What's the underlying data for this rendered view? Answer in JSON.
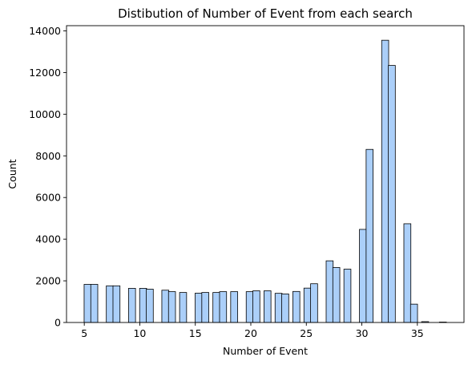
{
  "chart_data": {
    "type": "bar",
    "title": "Distibution of Number of Event from each search",
    "xlabel": "Number of Event",
    "ylabel": "Count",
    "xlim": [
      3.4,
      39.2
    ],
    "ylim": [
      0,
      14250
    ],
    "xticks": [
      5,
      10,
      15,
      20,
      25,
      30,
      35
    ],
    "yticks": [
      0,
      2000,
      4000,
      6000,
      8000,
      10000,
      12000,
      14000
    ],
    "bar_color": "#abcff9",
    "bar_width": 0.63,
    "grid": false,
    "legend": "none",
    "x": [
      5.3,
      5.9,
      7.3,
      7.9,
      9.3,
      10.3,
      10.9,
      12.3,
      12.9,
      13.9,
      15.3,
      15.9,
      16.9,
      17.5,
      18.5,
      19.9,
      20.5,
      21.5,
      22.5,
      23.1,
      24.1,
      25.1,
      25.7,
      27.1,
      27.7,
      28.7,
      30.1,
      30.7,
      32.1,
      32.7,
      34.1,
      34.7,
      35.7,
      36.3,
      37.3
    ],
    "values": [
      1830,
      1830,
      1760,
      1760,
      1640,
      1640,
      1600,
      1550,
      1480,
      1440,
      1410,
      1440,
      1440,
      1480,
      1480,
      1480,
      1520,
      1520,
      1400,
      1370,
      1490,
      1650,
      1860,
      2960,
      2640,
      2560,
      4470,
      8310,
      13550,
      12340,
      4740,
      880,
      40,
      0,
      20
    ]
  }
}
